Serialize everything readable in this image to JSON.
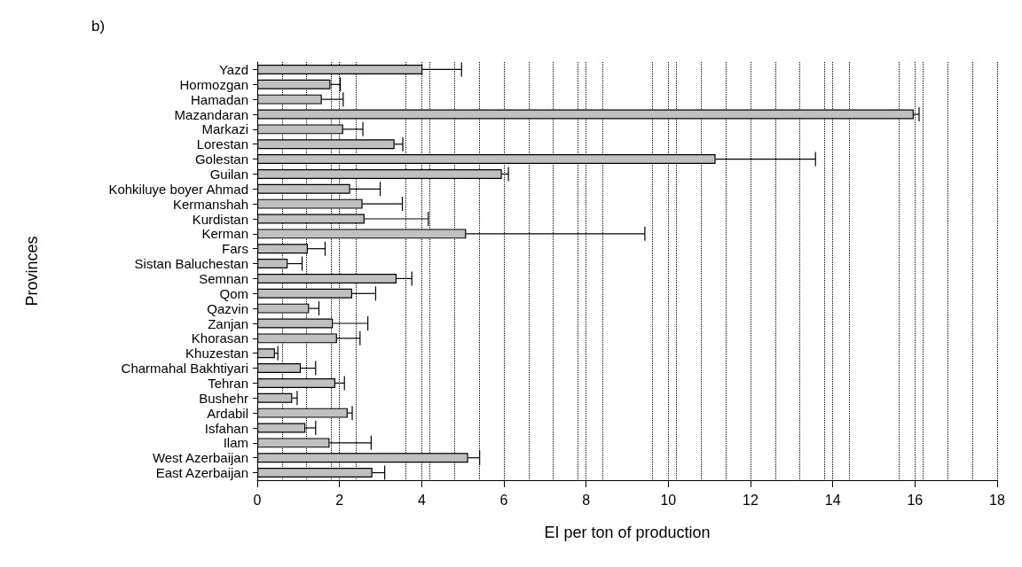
{
  "chart_data": {
    "type": "bar",
    "orientation": "horizontal",
    "title": "b)",
    "xlabel": "EI per ton of production",
    "ylabel": "Provinces",
    "categories": [
      "Yazd",
      "Hormozgan",
      "Hamadan",
      "Mazandaran",
      "Markazi",
      "Lorestan",
      "Golestan",
      "Guilan",
      "Kohkiluye boyer Ahmad",
      "Kermanshah",
      "Kurdistan",
      "Kerman",
      "Fars",
      "Sistan Baluchestan",
      "Semnan",
      "Qom",
      "Qazvin",
      "Zanjan",
      "Khorasan",
      "Khuzestan",
      "Charmahal Bakhtiyari",
      "Tehran",
      "Bushehr",
      "Ardabil",
      "Isfahan",
      "Ilam",
      "West Azerbaijan",
      "East Azerbaijan"
    ],
    "values": [
      4.02,
      1.78,
      1.57,
      15.97,
      2.09,
      3.34,
      11.15,
      5.95,
      2.26,
      2.56,
      2.61,
      5.08,
      1.23,
      0.74,
      3.39,
      2.31,
      1.26,
      1.84,
      1.94,
      0.43,
      1.06,
      1.9,
      0.85,
      2.2,
      1.17,
      1.76,
      5.13,
      2.8
    ],
    "errors": [
      [
        4.02,
        4.97
      ],
      [
        1.78,
        2.02
      ],
      [
        1.57,
        2.09
      ],
      [
        15.97,
        16.1
      ],
      [
        2.09,
        2.57
      ],
      [
        3.34,
        3.54
      ],
      [
        11.15,
        13.58
      ],
      [
        5.95,
        6.11
      ],
      [
        2.26,
        2.99
      ],
      [
        2.56,
        3.53
      ],
      [
        2.61,
        4.16
      ],
      [
        5.08,
        9.43
      ],
      [
        1.23,
        1.65
      ],
      [
        0.74,
        1.09
      ],
      [
        3.39,
        3.76
      ],
      [
        2.31,
        2.88
      ],
      [
        1.26,
        1.5
      ],
      [
        1.84,
        2.69
      ],
      [
        1.94,
        2.5
      ],
      [
        0.43,
        0.5
      ],
      [
        1.06,
        1.42
      ],
      [
        1.9,
        2.12
      ],
      [
        0.85,
        0.97
      ],
      [
        2.2,
        2.31
      ],
      [
        1.17,
        1.42
      ],
      [
        1.76,
        2.77
      ],
      [
        5.13,
        5.41
      ],
      [
        2.8,
        3.1
      ]
    ],
    "color": "#c0c0c0",
    "xlim": [
      0,
      18
    ],
    "xticks": [
      0,
      2,
      4,
      6,
      8,
      10,
      12,
      14,
      16,
      18
    ],
    "grid": "x"
  }
}
